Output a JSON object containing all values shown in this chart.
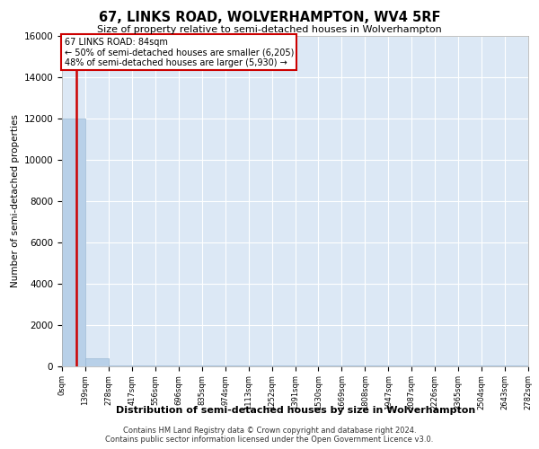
{
  "title": "67, LINKS ROAD, WOLVERHAMPTON, WV4 5RF",
  "subtitle": "Size of property relative to semi-detached houses in Wolverhampton",
  "xlabel": "Distribution of semi-detached houses by size in Wolverhampton",
  "ylabel": "Number of semi-detached properties",
  "footer_line1": "Contains HM Land Registry data © Crown copyright and database right 2024.",
  "footer_line2": "Contains public sector information licensed under the Open Government Licence v3.0.",
  "bar_edges": [
    0,
    139,
    278,
    417,
    556,
    696,
    835,
    974,
    1113,
    1252,
    1391,
    1530,
    1669,
    1808,
    1947,
    2087,
    2226,
    2365,
    2504,
    2643,
    2782
  ],
  "bar_heights": [
    12000,
    350,
    15,
    8,
    4,
    3,
    2,
    2,
    1,
    1,
    1,
    1,
    1,
    1,
    1,
    1,
    1,
    1,
    1,
    1
  ],
  "bar_color": "#b8d0e8",
  "property_size": 84,
  "annotation_title": "67 LINKS ROAD: 84sqm",
  "annotation_line1": "← 50% of semi-detached houses are smaller (6,205)",
  "annotation_line2": "48% of semi-detached houses are larger (5,930) →",
  "red_line_color": "#cc0000",
  "annotation_box_color": "#ffffff",
  "annotation_box_edge_color": "#cc0000",
  "ylim": [
    0,
    16000
  ],
  "xlim": [
    0,
    2782
  ],
  "plot_background_color": "#dce8f5",
  "tick_labels": [
    "0sqm",
    "139sqm",
    "278sqm",
    "417sqm",
    "556sqm",
    "696sqm",
    "835sqm",
    "974sqm",
    "1113sqm",
    "1252sqm",
    "1391sqm",
    "1530sqm",
    "1669sqm",
    "1808sqm",
    "1947sqm",
    "2087sqm",
    "2226sqm",
    "2365sqm",
    "2504sqm",
    "2643sqm",
    "2782sqm"
  ]
}
